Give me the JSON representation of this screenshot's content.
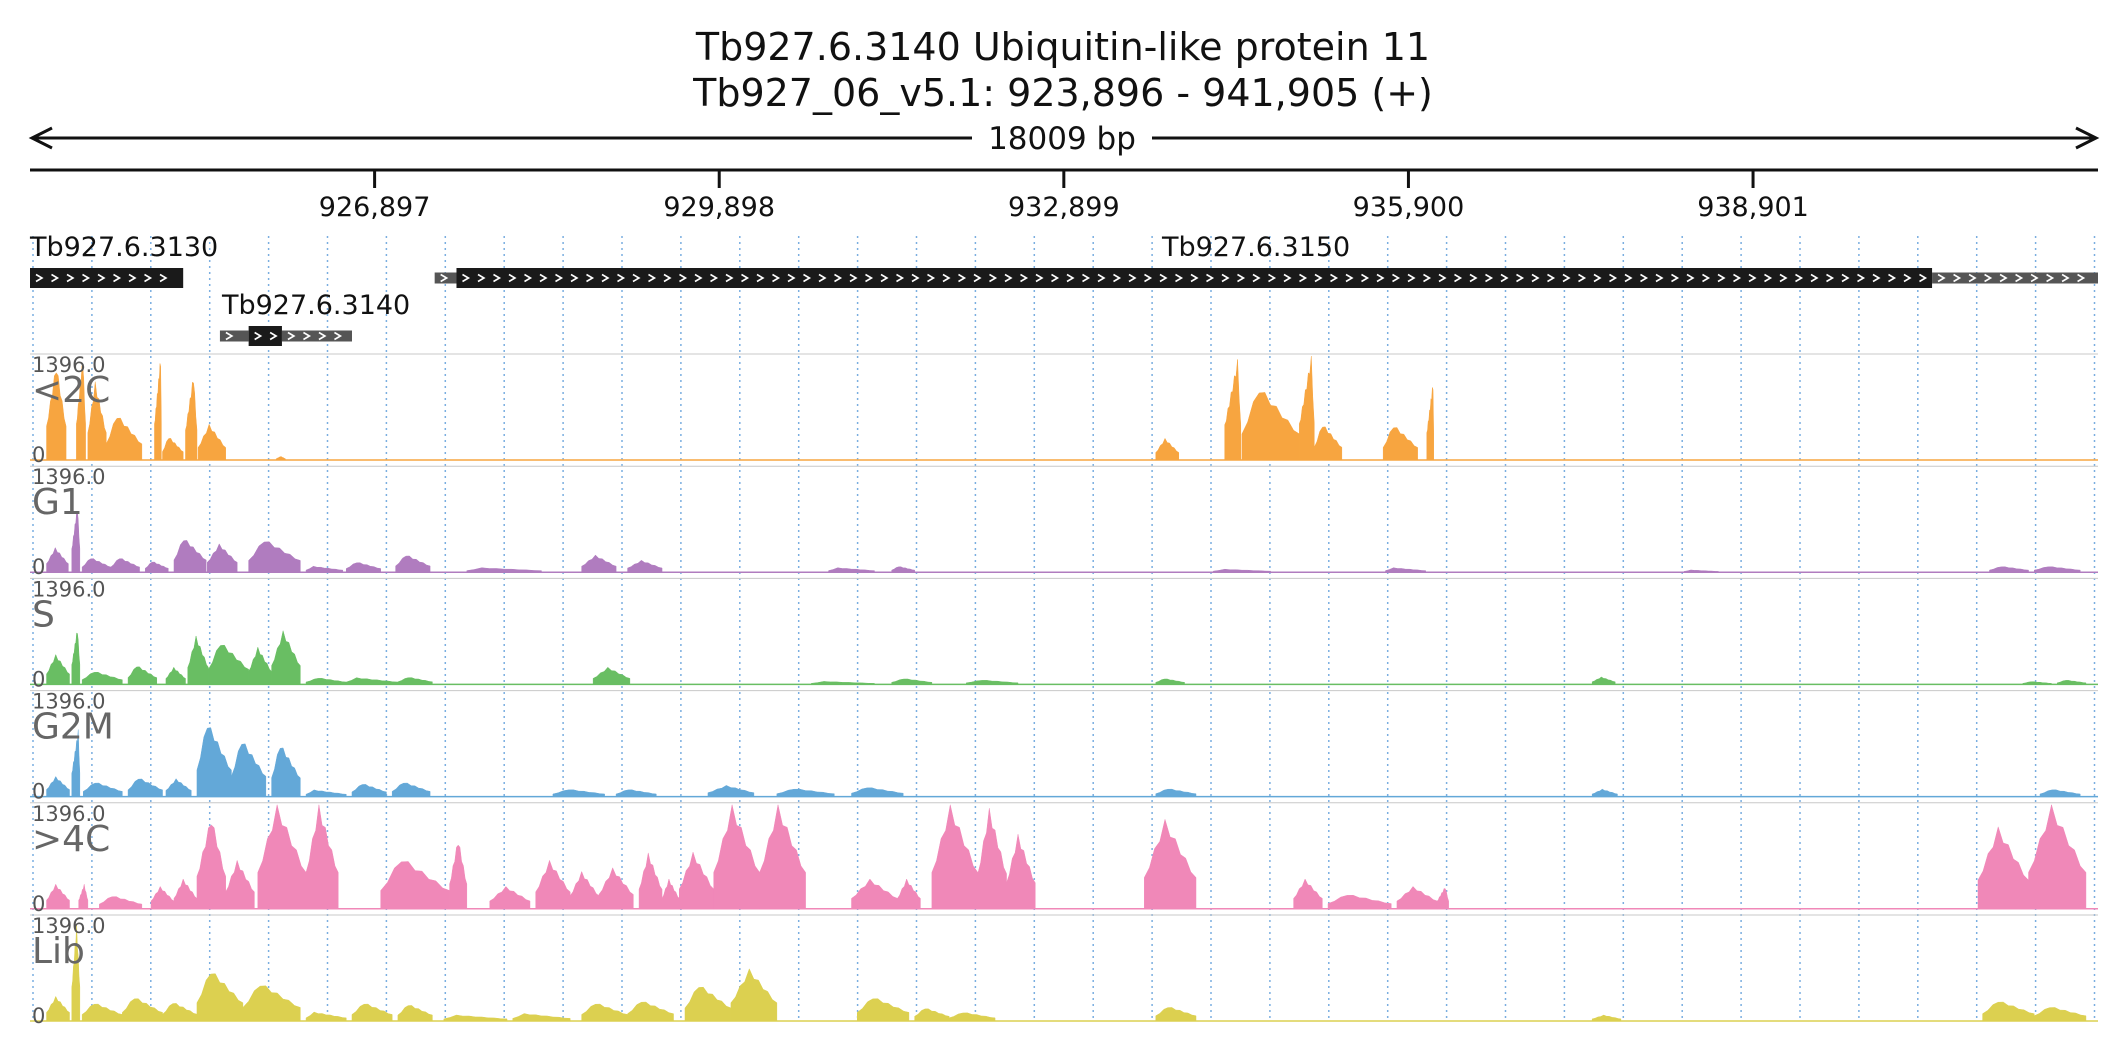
{
  "header": {
    "title": "Tb927.6.3140  Ubiquitin-like protein 11",
    "subtitle": "Tb927_06_v5.1: 923,896 - 941,905 (+)",
    "span_label": "18009 bp"
  },
  "chart_data": {
    "type": "area",
    "x_range": [
      923896,
      941905
    ],
    "x_ticks": [
      {
        "value": 926897,
        "label": "926,897"
      },
      {
        "value": 929898,
        "label": "929,898"
      },
      {
        "value": 932899,
        "label": "932,899"
      },
      {
        "value": 935900,
        "label": "935,900"
      },
      {
        "value": 938901,
        "label": "938,901"
      }
    ],
    "y_range": [
      0,
      1396.0
    ],
    "genes": [
      {
        "id": "Tb927.6.3130",
        "label": "Tb927.6.3130",
        "strand": "+",
        "segments": [
          {
            "start": 923896,
            "end": 925230,
            "kind": "cds"
          }
        ]
      },
      {
        "id": "Tb927.6.3140",
        "label": "Tb927.6.3140",
        "strand": "+",
        "segments": [
          {
            "start": 925550,
            "end": 925800,
            "kind": "utr"
          },
          {
            "start": 925800,
            "end": 926090,
            "kind": "cds"
          },
          {
            "start": 926090,
            "end": 926700,
            "kind": "utr"
          }
        ]
      },
      {
        "id": "Tb927.6.3150",
        "label": "Tb927.6.3150",
        "strand": "+",
        "segments": [
          {
            "start": 927420,
            "end": 927610,
            "kind": "utr"
          },
          {
            "start": 927610,
            "end": 940460,
            "kind": "cds"
          },
          {
            "start": 940460,
            "end": 941905,
            "kind": "utr"
          }
        ]
      }
    ],
    "tracks": [
      {
        "name": "<2C",
        "max_label": "1396.0",
        "min_label": "0",
        "color": "#f7a540",
        "peaks": [
          [
            924040,
            924210,
            1300,
            0.5
          ],
          [
            924300,
            924380,
            1396,
            0.7
          ],
          [
            924400,
            924560,
            1050,
            0.4
          ],
          [
            924560,
            924870,
            620,
            0.3
          ],
          [
            924980,
            925040,
            1396,
            0.9
          ],
          [
            925050,
            925230,
            320,
            0.3
          ],
          [
            925250,
            925350,
            1150,
            0.7
          ],
          [
            925360,
            925600,
            480,
            0.4
          ],
          [
            926040,
            926120,
            50,
            0.5
          ],
          [
            933700,
            933900,
            290,
            0.4
          ],
          [
            934300,
            934440,
            1350,
            0.8
          ],
          [
            934450,
            934950,
            1000,
            0.3
          ],
          [
            934950,
            935080,
            1396,
            0.8
          ],
          [
            935080,
            935320,
            490,
            0.3
          ],
          [
            935680,
            935980,
            480,
            0.3
          ],
          [
            936060,
            936120,
            1050,
            0.9
          ]
        ]
      },
      {
        "name": "G1",
        "max_label": "1396.0",
        "min_label": "0",
        "color": "#b07cbf",
        "peaks": [
          [
            924040,
            924230,
            330,
            0.4
          ],
          [
            924260,
            924330,
            900,
            0.7
          ],
          [
            924350,
            924600,
            200,
            0.3
          ],
          [
            924600,
            924850,
            200,
            0.3
          ],
          [
            924900,
            925100,
            150,
            0.3
          ],
          [
            925150,
            925430,
            470,
            0.3
          ],
          [
            925440,
            925700,
            380,
            0.4
          ],
          [
            925800,
            926250,
            450,
            0.3
          ],
          [
            926300,
            926620,
            80,
            0.2
          ],
          [
            926650,
            926950,
            140,
            0.3
          ],
          [
            927080,
            927380,
            240,
            0.3
          ],
          [
            927700,
            928350,
            60,
            0.2
          ],
          [
            928700,
            929000,
            230,
            0.4
          ],
          [
            929100,
            929400,
            160,
            0.4
          ],
          [
            930850,
            931250,
            60,
            0.2
          ],
          [
            931400,
            931600,
            80,
            0.3
          ],
          [
            934200,
            934700,
            40,
            0.2
          ],
          [
            935700,
            936050,
            60,
            0.2
          ],
          [
            938300,
            938600,
            30,
            0.2
          ],
          [
            940960,
            941300,
            80,
            0.3
          ],
          [
            941350,
            941750,
            80,
            0.3
          ]
        ]
      },
      {
        "name": "S",
        "max_label": "1396.0",
        "min_label": "0",
        "color": "#69be63",
        "peaks": [
          [
            924040,
            924240,
            400,
            0.4
          ],
          [
            924260,
            924330,
            760,
            0.7
          ],
          [
            924350,
            924700,
            180,
            0.3
          ],
          [
            924750,
            925000,
            260,
            0.3
          ],
          [
            925080,
            925250,
            230,
            0.4
          ],
          [
            925270,
            925450,
            650,
            0.4
          ],
          [
            925450,
            925800,
            580,
            0.3
          ],
          [
            925800,
            926000,
            500,
            0.4
          ],
          [
            926000,
            926250,
            720,
            0.4
          ],
          [
            926300,
            926650,
            90,
            0.3
          ],
          [
            926650,
            927100,
            90,
            0.2
          ],
          [
            927100,
            927400,
            100,
            0.3
          ],
          [
            928800,
            929120,
            230,
            0.4
          ],
          [
            930700,
            931250,
            40,
            0.2
          ],
          [
            931400,
            931750,
            80,
            0.3
          ],
          [
            932050,
            932500,
            60,
            0.3
          ],
          [
            933700,
            933950,
            80,
            0.3
          ],
          [
            937500,
            937700,
            100,
            0.4
          ],
          [
            941250,
            941500,
            40,
            0.3
          ],
          [
            941550,
            941800,
            60,
            0.3
          ]
        ]
      },
      {
        "name": "G2M",
        "max_label": "1396.0",
        "min_label": "0",
        "color": "#63a8d8",
        "peaks": [
          [
            924040,
            924240,
            270,
            0.4
          ],
          [
            924260,
            924330,
            900,
            0.8
          ],
          [
            924360,
            924700,
            200,
            0.3
          ],
          [
            924750,
            925050,
            260,
            0.3
          ],
          [
            925080,
            925300,
            240,
            0.4
          ],
          [
            925350,
            925650,
            1020,
            0.3
          ],
          [
            925650,
            925950,
            780,
            0.3
          ],
          [
            926000,
            926250,
            720,
            0.3
          ],
          [
            926300,
            926650,
            90,
            0.2
          ],
          [
            926700,
            927000,
            180,
            0.3
          ],
          [
            927050,
            927380,
            200,
            0.3
          ],
          [
            928450,
            928900,
            100,
            0.3
          ],
          [
            929000,
            929350,
            100,
            0.3
          ],
          [
            929800,
            930200,
            150,
            0.4
          ],
          [
            930400,
            930900,
            110,
            0.3
          ],
          [
            931050,
            931500,
            130,
            0.3
          ],
          [
            933700,
            934050,
            110,
            0.3
          ],
          [
            937500,
            937720,
            100,
            0.4
          ],
          [
            941400,
            941750,
            100,
            0.3
          ]
        ]
      },
      {
        "name": ">4C",
        "max_label": "1396.0",
        "min_label": "0",
        "color": "#f088b8",
        "peaks": [
          [
            924040,
            924240,
            330,
            0.4
          ],
          [
            924320,
            924400,
            330,
            0.6
          ],
          [
            924500,
            924870,
            180,
            0.3
          ],
          [
            924950,
            925150,
            300,
            0.4
          ],
          [
            925150,
            925350,
            400,
            0.4
          ],
          [
            925350,
            925600,
            1250,
            0.5
          ],
          [
            925600,
            925850,
            650,
            0.4
          ],
          [
            925880,
            926300,
            1396,
            0.4
          ],
          [
            926300,
            926580,
            1396,
            0.4
          ],
          [
            926950,
            927550,
            700,
            0.3
          ],
          [
            927550,
            927700,
            950,
            0.5
          ],
          [
            927900,
            928250,
            300,
            0.4
          ],
          [
            928300,
            928600,
            650,
            0.4
          ],
          [
            928600,
            928850,
            500,
            0.4
          ],
          [
            928850,
            929150,
            550,
            0.4
          ],
          [
            929200,
            929400,
            750,
            0.4
          ],
          [
            929400,
            929550,
            400,
            0.4
          ],
          [
            929550,
            929850,
            760,
            0.4
          ],
          [
            929850,
            930250,
            1396,
            0.4
          ],
          [
            930250,
            930650,
            1396,
            0.4
          ],
          [
            931050,
            931450,
            400,
            0.4
          ],
          [
            931450,
            931650,
            400,
            0.4
          ],
          [
            931750,
            932150,
            1396,
            0.4
          ],
          [
            932150,
            932400,
            1350,
            0.4
          ],
          [
            932400,
            932650,
            1000,
            0.4
          ],
          [
            933600,
            934050,
            1200,
            0.4
          ],
          [
            934900,
            935150,
            400,
            0.4
          ],
          [
            935200,
            935750,
            200,
            0.3
          ],
          [
            935800,
            936150,
            300,
            0.4
          ],
          [
            936150,
            936250,
            300,
            0.7
          ],
          [
            940860,
            941300,
            1100,
            0.4
          ],
          [
            941300,
            941800,
            1396,
            0.4
          ]
        ]
      },
      {
        "name": "Lib",
        "max_label": "1396.0",
        "min_label": "0",
        "color": "#dcd050",
        "peaks": [
          [
            924040,
            924240,
            330,
            0.4
          ],
          [
            924260,
            924330,
            1300,
            0.6
          ],
          [
            924350,
            924700,
            250,
            0.3
          ],
          [
            924700,
            925050,
            330,
            0.3
          ],
          [
            925050,
            925350,
            260,
            0.3
          ],
          [
            925350,
            925750,
            700,
            0.3
          ],
          [
            925750,
            926250,
            520,
            0.3
          ],
          [
            926300,
            926650,
            120,
            0.2
          ],
          [
            926700,
            927050,
            250,
            0.3
          ],
          [
            927100,
            927400,
            230,
            0.3
          ],
          [
            927500,
            928050,
            80,
            0.2
          ],
          [
            928100,
            928600,
            100,
            0.2
          ],
          [
            928700,
            929100,
            250,
            0.3
          ],
          [
            929100,
            929500,
            280,
            0.3
          ],
          [
            929600,
            930000,
            500,
            0.3
          ],
          [
            930000,
            930400,
            700,
            0.4
          ],
          [
            931100,
            931550,
            330,
            0.3
          ],
          [
            931600,
            931900,
            180,
            0.3
          ],
          [
            931900,
            932300,
            120,
            0.3
          ],
          [
            933700,
            934050,
            200,
            0.3
          ],
          [
            937500,
            937750,
            80,
            0.4
          ],
          [
            940900,
            941350,
            280,
            0.3
          ],
          [
            941350,
            941800,
            200,
            0.3
          ]
        ]
      }
    ]
  }
}
